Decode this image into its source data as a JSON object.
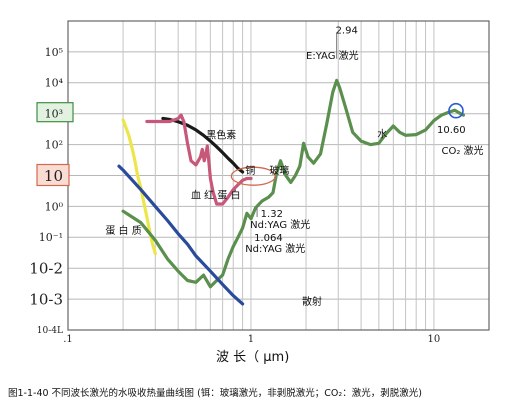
{
  "caption": "图1-1-40   不同波长激光的水吸收热量曲线图 (铒：玻璃激光，非剥脱激光；CO₂：激光，剥脱激光)",
  "chart_data": {
    "type": "line",
    "x_scale": "log",
    "y_scale": "log",
    "xlim": [
      0.1,
      20
    ],
    "ylim": [
      0.0001,
      1000000
    ],
    "xlabel": "波 长（ μm)",
    "ylabel": "",
    "x_ticks": [
      {
        "value": 0.1,
        "label": ".1"
      },
      {
        "value": 1,
        "label": "1"
      },
      {
        "value": 10,
        "label": "10"
      }
    ],
    "y_ticks": [
      {
        "value": 100000,
        "label": "10⁵",
        "size": 11
      },
      {
        "value": 10000,
        "label": "10⁴",
        "size": 11
      },
      {
        "value": 1000,
        "label": "10³",
        "size": 11,
        "highlight": "box-green"
      },
      {
        "value": 100,
        "label": "10²",
        "size": 11
      },
      {
        "value": 10,
        "label": "10",
        "size": 15,
        "highlight": "box-red"
      },
      {
        "value": 1,
        "label": "10⁰",
        "size": 11
      },
      {
        "value": 0.1,
        "label": "10⁻¹",
        "size": 11
      },
      {
        "value": 0.01,
        "label": "10-2",
        "size": 15
      },
      {
        "value": 0.001,
        "label": "10-3",
        "size": 15
      },
      {
        "value": 0.0001,
        "label": "10-4L",
        "size": 9
      }
    ],
    "grid": true,
    "series": [
      {
        "name": "蛋白质",
        "color": "#ece64a",
        "x": [
          0.2,
          0.215,
          0.225,
          0.232,
          0.24,
          0.25,
          0.26,
          0.27,
          0.28,
          0.29,
          0.3
        ],
        "y": [
          630,
          200,
          70,
          30,
          10,
          4,
          1.3,
          0.45,
          0.15,
          0.06,
          0.03
        ]
      },
      {
        "name": "黑色素",
        "color": "#1a1a1a",
        "x": [
          0.33,
          0.36,
          0.4,
          0.45,
          0.5,
          0.55,
          0.6,
          0.65,
          0.7,
          0.75,
          0.8,
          0.85,
          0.9
        ],
        "y": [
          700,
          650,
          550,
          420,
          300,
          200,
          130,
          85,
          55,
          36,
          25,
          17,
          13
        ]
      },
      {
        "name": "血红蛋白",
        "color": "#c8587a",
        "x": [
          0.27,
          0.3,
          0.33,
          0.36,
          0.4,
          0.415,
          0.43,
          0.45,
          0.47,
          0.5,
          0.53,
          0.542,
          0.555,
          0.565,
          0.577,
          0.59,
          0.6,
          0.62,
          0.65,
          0.7,
          0.75,
          0.8,
          0.85,
          0.9,
          0.95,
          1.0
        ],
        "y": [
          560,
          560,
          560,
          560,
          700,
          900,
          550,
          110,
          30,
          22,
          40,
          70,
          30,
          45,
          90,
          25,
          8,
          3,
          1.2,
          1.2,
          2,
          3.5,
          5,
          7,
          8,
          8
        ]
      },
      {
        "name": "水",
        "color": "#5a8f4e",
        "x": [
          0.2,
          0.25,
          0.3,
          0.35,
          0.4,
          0.45,
          0.5,
          0.55,
          0.6,
          0.65,
          0.7,
          0.75,
          0.8,
          0.85,
          0.9,
          0.95,
          1.0,
          1.06,
          1.15,
          1.25,
          1.32,
          1.38,
          1.45,
          1.55,
          1.65,
          1.75,
          1.85,
          1.94,
          2.05,
          2.2,
          2.4,
          2.6,
          2.8,
          2.94,
          3.05,
          3.3,
          3.6,
          4.0,
          4.5,
          5.0,
          5.5,
          6.0,
          6.5,
          7.0,
          8.0,
          9.0,
          10.0,
          11.0,
          12.0,
          13.0,
          14.0,
          14.5
        ],
        "y": [
          0.7,
          0.3,
          0.08,
          0.02,
          0.008,
          0.004,
          0.0035,
          0.006,
          0.0025,
          0.004,
          0.006,
          0.02,
          0.05,
          0.1,
          0.2,
          0.6,
          0.4,
          0.9,
          1.5,
          2,
          2.8,
          12,
          30,
          10,
          6,
          10,
          20,
          110,
          40,
          25,
          50,
          500,
          5000,
          12000,
          7000,
          1500,
          250,
          130,
          100,
          110,
          230,
          400,
          250,
          200,
          210,
          300,
          600,
          900,
          1100,
          1300,
          1000,
          900
        ]
      },
      {
        "name": "散射",
        "color": "#2a4a9c",
        "x": [
          0.19,
          0.2,
          0.25,
          0.3,
          0.35,
          0.4,
          0.45,
          0.5,
          0.6,
          0.7,
          0.8,
          0.9
        ],
        "y": [
          20,
          15,
          3.5,
          1,
          0.35,
          0.13,
          0.06,
          0.025,
          0.008,
          0.003,
          0.0013,
          0.0007
        ]
      }
    ],
    "annotations": [
      {
        "text": "2.94",
        "x": 2.9,
        "y": 400000,
        "size": 9,
        "color": "#555"
      },
      {
        "text": "E:YAG 激光",
        "x": 2.0,
        "y": 60000,
        "size": 10
      },
      {
        "text": "黑色素",
        "x": 0.57,
        "y": 160,
        "size": 10
      },
      {
        "text": "铜",
        "x": 0.93,
        "y": 11,
        "size": 8
      },
      {
        "text": "玻璃",
        "x": 1.26,
        "y": 11,
        "size": 8
      },
      {
        "text": "血 红 蛋 白",
        "x": 0.47,
        "y": 1.8,
        "size": 10
      },
      {
        "text": "蛋 白 质",
        "x": 0.16,
        "y": 0.13,
        "size": 10
      },
      {
        "text": "1.32",
        "x": 1.13,
        "y": 0.45,
        "size": 9
      },
      {
        "text": "Nd:YAG 激光",
        "x": 0.99,
        "y": 0.2,
        "size": 10
      },
      {
        "text": "1.064",
        "x": 1.04,
        "y": 0.075,
        "size": 9
      },
      {
        "text": "Nd:YAG 激光",
        "x": 0.93,
        "y": 0.033,
        "size": 10
      },
      {
        "text": "散射",
        "x": 1.9,
        "y": 0.00065,
        "size": 10
      },
      {
        "text": "水",
        "x": 4.9,
        "y": 170,
        "size": 10
      },
      {
        "text": "10.60",
        "x": 10.4,
        "y": 240,
        "size": 9
      },
      {
        "text": "CO₂ 激光",
        "x": 11.0,
        "y": 50,
        "size": 10
      }
    ]
  }
}
